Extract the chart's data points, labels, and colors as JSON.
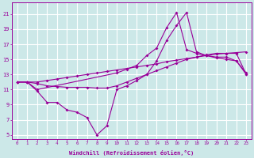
{
  "xlabel": "Windchill (Refroidissement éolien,°C)",
  "bg_color": "#cce8e8",
  "grid_color": "#ffffff",
  "line_color": "#990099",
  "xlim": [
    -0.5,
    23.5
  ],
  "ylim": [
    4.5,
    22.5
  ],
  "yticks": [
    5,
    7,
    9,
    11,
    13,
    15,
    17,
    19,
    21
  ],
  "xticks": [
    0,
    1,
    2,
    3,
    4,
    5,
    6,
    7,
    8,
    9,
    10,
    11,
    12,
    13,
    14,
    15,
    16,
    17,
    18,
    19,
    20,
    21,
    22,
    23
  ],
  "line1_x": [
    0,
    1,
    2,
    3,
    4,
    5,
    6,
    7,
    8,
    9,
    10,
    11,
    12,
    13,
    14,
    15,
    16,
    17,
    18,
    19,
    20,
    21,
    22,
    23
  ],
  "line1_y": [
    12,
    12,
    10.8,
    9.3,
    9.3,
    8.3,
    8.0,
    7.3,
    5.0,
    6.2,
    11.0,
    11.5,
    12.2,
    13.0,
    14.8,
    17.5,
    19.5,
    21.2,
    16.0,
    15.5,
    15.2,
    15.0,
    14.8,
    13.0
  ],
  "line2_x": [
    0,
    1,
    2,
    10,
    11,
    12,
    13,
    14,
    15,
    16,
    17,
    18,
    19,
    20,
    21,
    22,
    23
  ],
  "line2_y": [
    12.0,
    12.0,
    11.0,
    13.2,
    13.7,
    14.2,
    15.5,
    16.5,
    19.2,
    21.2,
    16.3,
    15.8,
    15.5,
    15.3,
    15.3,
    14.8,
    13.2
  ],
  "line3_x": [
    0,
    1,
    2,
    3,
    4,
    5,
    6,
    7,
    8,
    9,
    10,
    11,
    12,
    13,
    14,
    15,
    16,
    17,
    18,
    19,
    20,
    21,
    22,
    23
  ],
  "line3_y": [
    12.0,
    12.0,
    11.8,
    11.5,
    11.4,
    11.3,
    11.3,
    11.3,
    11.2,
    11.2,
    11.5,
    12.0,
    12.5,
    13.0,
    13.5,
    14.0,
    14.5,
    15.0,
    15.3,
    15.6,
    15.8,
    15.8,
    15.8,
    13.0
  ],
  "line4_x": [
    0,
    1,
    2,
    3,
    4,
    5,
    6,
    7,
    8,
    9,
    10,
    11,
    12,
    13,
    14,
    15,
    16,
    17,
    18,
    19,
    20,
    21,
    22,
    23
  ],
  "line4_y": [
    12.0,
    12.0,
    12.0,
    12.2,
    12.4,
    12.6,
    12.8,
    13.0,
    13.2,
    13.4,
    13.6,
    13.8,
    14.0,
    14.2,
    14.4,
    14.7,
    14.9,
    15.1,
    15.3,
    15.5,
    15.7,
    15.8,
    15.9,
    16.0
  ],
  "marker": "D",
  "markersize": 2.0,
  "linewidth": 0.8,
  "xlabel_fontsize": 5.0,
  "tick_fontsize": 4.2,
  "tick_fontsize_y": 5.0
}
